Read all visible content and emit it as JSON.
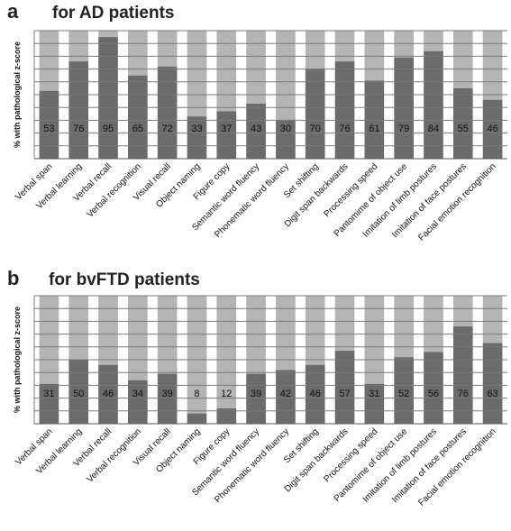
{
  "chart_data": [
    {
      "type": "bar",
      "stacked": true,
      "panel": "a",
      "title": "for AD patients",
      "ylabel": "% with pathological z-score",
      "ylim": [
        0,
        100
      ],
      "grid": true,
      "categories": [
        "Verbal span",
        "Verbal learning",
        "Verbal recall",
        "Verbal recognition",
        "Visual recall",
        "Object naming",
        "Figure copy",
        "Semantic word fluency",
        "Phonematic word fluency",
        "Set shifting",
        "Digit span backwards",
        "Processing speed",
        "Pantomime of object use",
        "Imitation of limb postures",
        "Imitation of face postures",
        "Facial emotion recognition"
      ],
      "values": [
        53,
        76,
        95,
        65,
        72,
        33,
        37,
        43,
        30,
        70,
        76,
        61,
        79,
        84,
        55,
        46
      ],
      "colors": {
        "value": "#6b6b6b",
        "remainder": "#b4b4b4"
      }
    },
    {
      "type": "bar",
      "stacked": true,
      "panel": "b",
      "title": "for bvFTD patients",
      "ylabel": "% with pathological z-score",
      "ylim": [
        0,
        100
      ],
      "grid": true,
      "categories": [
        "Verbal span",
        "Verbal learning",
        "Verbal recall",
        "Verbal recognition",
        "Visual recall",
        "Object naming",
        "Figure copy",
        "Semantic word fluency",
        "Phonematic word fluency",
        "Set shifting",
        "Digit span backwards",
        "Processing speed",
        "Pantomime of object use",
        "Imitation of limb postures",
        "Imitation of face postures",
        "Facial emotion recognition"
      ],
      "values": [
        31,
        50,
        46,
        34,
        39,
        8,
        12,
        39,
        42,
        46,
        57,
        31,
        52,
        56,
        76,
        63
      ],
      "colors": {
        "value": "#6b6b6b",
        "remainder": "#b4b4b4"
      }
    }
  ]
}
